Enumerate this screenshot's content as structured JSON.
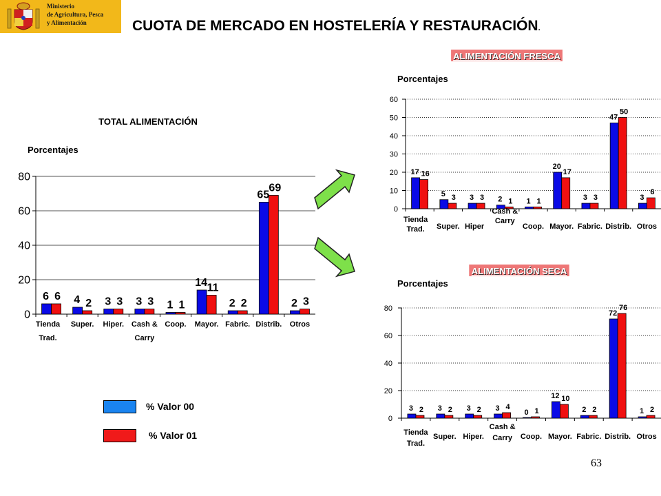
{
  "header": {
    "ministry_lines": "Ministerio\nde Agricultura, Pesca\ny Alimentación",
    "title": "CUOTA DE MERCADO EN HOSTELERÍA Y RESTAURACIÓN",
    "title_suffix": ".",
    "logo_color": "#f2b81a"
  },
  "legend": {
    "series_a_label": "% Valor 00",
    "series_b_label": "% Valor 01"
  },
  "colors": {
    "series_a": "#0a0ae6",
    "series_b": "#f01010",
    "legend_a": "#1a84f0",
    "legend_b": "#f01a1a",
    "arrow": "#7ee04a",
    "banner": "#ee7777"
  },
  "page_number": "63",
  "chart_data": [
    {
      "id": "total",
      "type": "bar",
      "title": "TOTAL ALIMENTACIÓN",
      "ylabel": "Porcentajes",
      "ylim": [
        0,
        80
      ],
      "yticks": [
        0,
        20,
        40,
        60,
        80
      ],
      "grid": true,
      "categories": [
        "Tienda Trad.",
        "Super.",
        "Hiper.",
        "Cash & Carry",
        "Coop.",
        "Mayor.",
        "Fabric.",
        "Distrib.",
        "Otros"
      ],
      "series": [
        {
          "name": "% Valor 00",
          "values": [
            6,
            4,
            3,
            3,
            1,
            14,
            2,
            65,
            2
          ]
        },
        {
          "name": "% Valor 01",
          "values": [
            6,
            2,
            3,
            3,
            1,
            11,
            2,
            69,
            3
          ]
        }
      ]
    },
    {
      "id": "fresca",
      "type": "bar",
      "title": "ALIMENTACIÓN FRESCA",
      "ylabel": "Porcentajes",
      "ylim": [
        0,
        60
      ],
      "yticks": [
        0,
        10,
        20,
        30,
        40,
        50,
        60
      ],
      "grid": true,
      "categories": [
        "Tienda Trad.",
        "Super.",
        "Hiper",
        "Cash & Carry",
        "Coop.",
        "Mayor.",
        "Fabric.",
        "Distrib.",
        "Otros"
      ],
      "series": [
        {
          "name": "% Valor 00",
          "values": [
            17,
            5,
            3,
            2,
            1,
            20,
            3,
            47,
            3
          ]
        },
        {
          "name": "% Valor 01",
          "values": [
            16,
            3,
            3,
            1,
            1,
            17,
            3,
            50,
            6
          ]
        }
      ]
    },
    {
      "id": "seca",
      "type": "bar",
      "title": "ALIMENTACIÓN SECA",
      "ylabel": "Porcentajes",
      "ylim": [
        0,
        80
      ],
      "yticks": [
        0,
        20,
        40,
        60,
        80
      ],
      "grid": true,
      "categories": [
        "Tienda Trad.",
        "Super.",
        "Hiper.",
        "Cash & Carry",
        "Coop.",
        "Mayor.",
        "Fabric.",
        "Distrib.",
        "Otros"
      ],
      "series": [
        {
          "name": "% Valor 00",
          "values": [
            3,
            3,
            3,
            3,
            0,
            12,
            2,
            72,
            1
          ]
        },
        {
          "name": "% Valor 01",
          "values": [
            2,
            2,
            2,
            4,
            1,
            10,
            2,
            76,
            2
          ]
        }
      ]
    }
  ]
}
